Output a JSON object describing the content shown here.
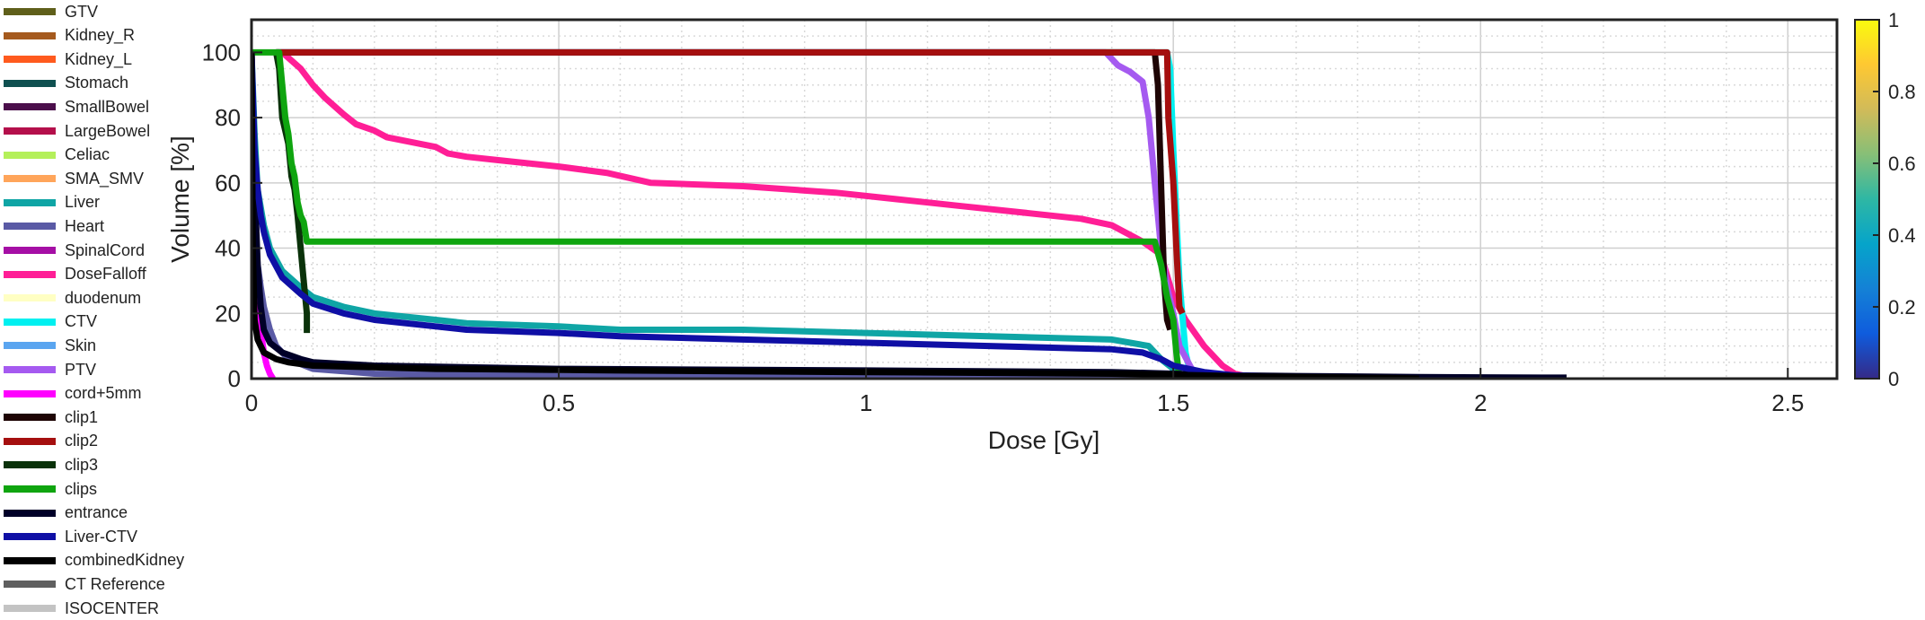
{
  "chart_data": {
    "type": "line",
    "title": "",
    "xlabel": "Dose [Gy]",
    "ylabel": "Volume [%]",
    "xlim": [
      0,
      2.58
    ],
    "ylim": [
      0,
      110
    ],
    "xticks": [
      0,
      0.5,
      1,
      1.5,
      2,
      2.5
    ],
    "xtick_labels": [
      "0",
      "0.5",
      "1",
      "1.5",
      "2",
      "2.5"
    ],
    "yticks": [
      0,
      20,
      40,
      60,
      80,
      100
    ],
    "ytick_labels": [
      "0",
      "20",
      "40",
      "60",
      "80",
      "100"
    ],
    "grid": true,
    "legend_position": "left",
    "colorbar": {
      "range": [
        0,
        1
      ],
      "ticks": [
        0,
        0.2,
        0.4,
        0.6,
        0.8,
        1
      ],
      "tick_labels": [
        "0",
        "0.2",
        "0.4",
        "0.6",
        "0.8",
        "1"
      ],
      "colormap": "parula",
      "colors": [
        "#352a87",
        "#0f5cdd",
        "#1481d6",
        "#06a4ca",
        "#2eb7a4",
        "#87bf77",
        "#d1bb59",
        "#fec832",
        "#f9fb0e"
      ]
    },
    "series": [
      {
        "name": "GTV",
        "color": "#5f5f1a",
        "points": []
      },
      {
        "name": "Kidney_R",
        "color": "#a55a1e",
        "points": []
      },
      {
        "name": "Kidney_L",
        "color": "#ff5a1e",
        "points": []
      },
      {
        "name": "Stomach",
        "color": "#0f5050",
        "points": []
      },
      {
        "name": "SmallBowel",
        "color": "#4b0f4b",
        "points": []
      },
      {
        "name": "LargeBowel",
        "color": "#b40f4b",
        "points": []
      },
      {
        "name": "Celiac",
        "color": "#b4f05a",
        "points": []
      },
      {
        "name": "SMA_SMV",
        "color": "#ffa55a",
        "points": []
      },
      {
        "name": "Liver",
        "color": "#0fa5a5",
        "points": [
          [
            0,
            100
          ],
          [
            0.005,
            75
          ],
          [
            0.01,
            58
          ],
          [
            0.02,
            47
          ],
          [
            0.03,
            40
          ],
          [
            0.05,
            33
          ],
          [
            0.08,
            28
          ],
          [
            0.1,
            25
          ],
          [
            0.15,
            22
          ],
          [
            0.2,
            20
          ],
          [
            0.3,
            18
          ],
          [
            0.35,
            17
          ],
          [
            0.5,
            16
          ],
          [
            0.6,
            15
          ],
          [
            0.8,
            15
          ],
          [
            1.0,
            14
          ],
          [
            1.2,
            13
          ],
          [
            1.4,
            12
          ],
          [
            1.46,
            10
          ],
          [
            1.48,
            6
          ],
          [
            1.5,
            3
          ],
          [
            1.52,
            0.5
          ],
          [
            1.55,
            0
          ]
        ]
      },
      {
        "name": "Heart",
        "color": "#5a5aa5",
        "points": [
          [
            0,
            100
          ],
          [
            0.005,
            50
          ],
          [
            0.01,
            35
          ],
          [
            0.015,
            28
          ],
          [
            0.02,
            22
          ],
          [
            0.03,
            15
          ],
          [
            0.04,
            10
          ],
          [
            0.06,
            6
          ],
          [
            0.1,
            3
          ],
          [
            0.2,
            1.5
          ],
          [
            0.5,
            0.8
          ],
          [
            1.0,
            0.5
          ],
          [
            1.4,
            0.3
          ],
          [
            1.5,
            0.1
          ],
          [
            1.55,
            0
          ]
        ]
      },
      {
        "name": "SpinalCord",
        "color": "#a50fa5",
        "points": []
      },
      {
        "name": "DoseFalloff",
        "color": "#ff1e96",
        "points": [
          [
            0.05,
            100
          ],
          [
            0.08,
            95
          ],
          [
            0.1,
            90
          ],
          [
            0.12,
            86
          ],
          [
            0.15,
            81
          ],
          [
            0.17,
            78
          ],
          [
            0.2,
            76
          ],
          [
            0.22,
            74
          ],
          [
            0.3,
            71
          ],
          [
            0.32,
            69
          ],
          [
            0.35,
            68
          ],
          [
            0.4,
            67
          ],
          [
            0.5,
            65
          ],
          [
            0.58,
            63
          ],
          [
            0.65,
            60
          ],
          [
            0.8,
            59
          ],
          [
            0.95,
            57
          ],
          [
            1.05,
            55
          ],
          [
            1.15,
            53
          ],
          [
            1.25,
            51
          ],
          [
            1.35,
            49
          ],
          [
            1.4,
            47
          ],
          [
            1.43,
            44
          ],
          [
            1.45,
            42
          ],
          [
            1.48,
            38
          ],
          [
            1.5,
            25
          ],
          [
            1.52,
            18
          ],
          [
            1.55,
            10
          ],
          [
            1.58,
            4
          ],
          [
            1.6,
            1.5
          ],
          [
            1.63,
            0.3
          ],
          [
            1.66,
            0
          ]
        ]
      },
      {
        "name": "duodenum",
        "color": "#ffffc3",
        "points": []
      },
      {
        "name": "CTV",
        "color": "#00f0f0",
        "points": [
          [
            0.04,
            100
          ],
          [
            1.49,
            100
          ],
          [
            1.495,
            95
          ],
          [
            1.5,
            70
          ],
          [
            1.51,
            30
          ],
          [
            1.52,
            8
          ],
          [
            1.53,
            0
          ]
        ]
      },
      {
        "name": "Skin",
        "color": "#5aa5f0",
        "points": []
      },
      {
        "name": "PTV",
        "color": "#a55af0",
        "points": [
          [
            0.04,
            100
          ],
          [
            1.39,
            100
          ],
          [
            1.41,
            96
          ],
          [
            1.43,
            94
          ],
          [
            1.45,
            91
          ],
          [
            1.46,
            80
          ],
          [
            1.47,
            60
          ],
          [
            1.48,
            40
          ],
          [
            1.49,
            28
          ],
          [
            1.5,
            20
          ],
          [
            1.51,
            10
          ],
          [
            1.53,
            3
          ],
          [
            1.56,
            0
          ]
        ]
      },
      {
        "name": "cord+5mm",
        "color": "#ff00ff",
        "points": [
          [
            0,
            100
          ],
          [
            0.005,
            60
          ],
          [
            0.01,
            30
          ],
          [
            0.015,
            15
          ],
          [
            0.02,
            8
          ],
          [
            0.025,
            4
          ],
          [
            0.03,
            1.5
          ],
          [
            0.035,
            0
          ]
        ]
      },
      {
        "name": "clip1",
        "color": "#1e0505",
        "points": [
          [
            0.04,
            100
          ],
          [
            1.47,
            100
          ],
          [
            1.475,
            90
          ],
          [
            1.48,
            60
          ],
          [
            1.485,
            30
          ],
          [
            1.49,
            18
          ],
          [
            1.495,
            15
          ]
        ]
      },
      {
        "name": "clip2",
        "color": "#a50f0f",
        "points": [
          [
            0.04,
            100
          ],
          [
            1.49,
            100
          ],
          [
            1.492,
            80
          ],
          [
            1.5,
            60
          ],
          [
            1.505,
            40
          ],
          [
            1.51,
            22
          ],
          [
            1.515,
            20
          ]
        ]
      },
      {
        "name": "clip3",
        "color": "#0a320a",
        "points": [
          [
            0.04,
            100
          ],
          [
            0.045,
            95
          ],
          [
            0.05,
            80
          ],
          [
            0.06,
            72
          ],
          [
            0.065,
            62
          ],
          [
            0.07,
            58
          ],
          [
            0.075,
            50
          ],
          [
            0.08,
            40
          ],
          [
            0.085,
            30
          ],
          [
            0.09,
            20
          ],
          [
            0.09,
            14
          ]
        ]
      },
      {
        "name": "clips",
        "color": "#0fa50f",
        "points": [
          [
            0,
            100
          ],
          [
            0.045,
            100
          ],
          [
            0.05,
            90
          ],
          [
            0.055,
            80
          ],
          [
            0.06,
            75
          ],
          [
            0.065,
            66
          ],
          [
            0.07,
            62
          ],
          [
            0.075,
            54
          ],
          [
            0.08,
            50
          ],
          [
            0.085,
            48
          ],
          [
            0.09,
            42
          ],
          [
            0.5,
            42
          ],
          [
            1.0,
            42
          ],
          [
            1.47,
            42
          ],
          [
            1.48,
            35
          ],
          [
            1.49,
            25
          ],
          [
            1.5,
            18
          ],
          [
            1.505,
            8
          ],
          [
            1.51,
            0
          ]
        ]
      },
      {
        "name": "entrance",
        "color": "#000028",
        "points": [
          [
            0,
            100
          ],
          [
            0.005,
            60
          ],
          [
            0.01,
            35
          ],
          [
            0.015,
            22
          ],
          [
            0.02,
            15
          ],
          [
            0.03,
            11
          ],
          [
            0.05,
            8
          ],
          [
            0.08,
            6
          ],
          [
            0.1,
            5
          ],
          [
            0.2,
            4
          ],
          [
            0.5,
            3
          ],
          [
            1.0,
            2.5
          ],
          [
            1.4,
            2
          ],
          [
            1.5,
            1.5
          ],
          [
            1.6,
            1
          ],
          [
            1.7,
            0.8
          ],
          [
            1.9,
            0.5
          ],
          [
            2.1,
            0.3
          ],
          [
            2.14,
            0.3
          ]
        ]
      },
      {
        "name": "Liver-CTV",
        "color": "#0f0fa5",
        "points": [
          [
            0,
            100
          ],
          [
            0.005,
            70
          ],
          [
            0.01,
            58
          ],
          [
            0.015,
            50
          ],
          [
            0.02,
            45
          ],
          [
            0.03,
            38
          ],
          [
            0.05,
            31
          ],
          [
            0.08,
            26
          ],
          [
            0.1,
            23
          ],
          [
            0.15,
            20
          ],
          [
            0.2,
            18
          ],
          [
            0.3,
            16
          ],
          [
            0.35,
            15
          ],
          [
            0.5,
            14
          ],
          [
            0.6,
            13
          ],
          [
            0.8,
            12
          ],
          [
            1.0,
            11
          ],
          [
            1.2,
            10
          ],
          [
            1.4,
            9
          ],
          [
            1.45,
            8
          ],
          [
            1.48,
            6
          ],
          [
            1.5,
            4
          ],
          [
            1.55,
            2
          ],
          [
            1.6,
            1
          ],
          [
            1.7,
            0.3
          ],
          [
            1.85,
            0
          ]
        ]
      },
      {
        "name": "combinedKidney",
        "color": "#000000",
        "points": [
          [
            0,
            100
          ],
          [
            0.002,
            40
          ],
          [
            0.005,
            18
          ],
          [
            0.01,
            12
          ],
          [
            0.02,
            8
          ],
          [
            0.04,
            6
          ],
          [
            0.06,
            5
          ],
          [
            0.08,
            4.5
          ],
          [
            0.1,
            4
          ],
          [
            0.3,
            3
          ],
          [
            0.6,
            2.5
          ],
          [
            1.0,
            2
          ],
          [
            1.4,
            1.5
          ],
          [
            1.5,
            1.2
          ],
          [
            1.6,
            0.8
          ],
          [
            1.7,
            0.5
          ],
          [
            1.85,
            0.2
          ],
          [
            1.9,
            0
          ]
        ]
      },
      {
        "name": "CT Reference",
        "color": "#5f5f5f",
        "points": []
      },
      {
        "name": "ISOCENTER",
        "color": "#c3c3c3",
        "points": []
      }
    ]
  }
}
